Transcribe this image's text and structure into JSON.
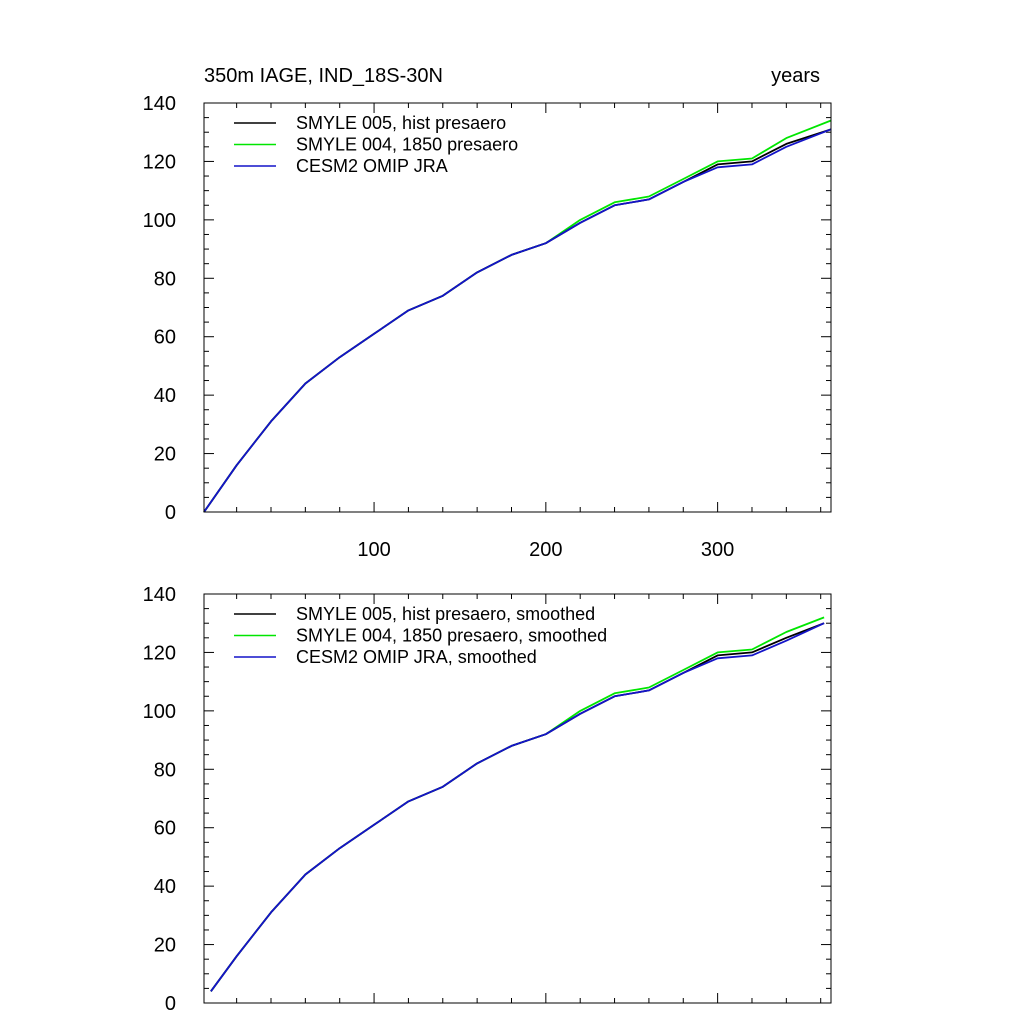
{
  "chart_data": [
    {
      "type": "line",
      "title_left": "350m IAGE, IND_18S-30N",
      "title_right": "years",
      "xlabel": "",
      "ylabel": "",
      "xlim": [
        1,
        366
      ],
      "ylim": [
        0,
        140
      ],
      "x_ticks": [
        100,
        200,
        300
      ],
      "x_tick_labels": [
        "100",
        "200",
        "300"
      ],
      "y_ticks": [
        0,
        20,
        40,
        60,
        80,
        100,
        120,
        140
      ],
      "y_tick_labels": [
        "0",
        "20",
        "40",
        "60",
        "80",
        "100",
        "120",
        "140"
      ],
      "legend_position": "top-left",
      "x": [
        1,
        20,
        40,
        60,
        80,
        100,
        120,
        140,
        160,
        180,
        200,
        220,
        240,
        260,
        280,
        300,
        320,
        340,
        366
      ],
      "series": [
        {
          "name": "SMYLE 005, hist presaero",
          "color": "#000000",
          "values": [
            0,
            16,
            31,
            44,
            53,
            61,
            69,
            74,
            82,
            88,
            92,
            99,
            105,
            107,
            113,
            119,
            120,
            126,
            131
          ]
        },
        {
          "name": "SMYLE 004, 1850 presaero",
          "color": "#00e600",
          "values": [
            0,
            16,
            31,
            44,
            53,
            61,
            69,
            74,
            82,
            88,
            92,
            100,
            106,
            108,
            114,
            120,
            121,
            128,
            134
          ]
        },
        {
          "name": "CESM2 OMIP JRA",
          "color": "#1414c8",
          "values": [
            0,
            16,
            31,
            44,
            53,
            61,
            69,
            74,
            82,
            88,
            92,
            99,
            105,
            107,
            113,
            118,
            119,
            125,
            131
          ]
        }
      ]
    },
    {
      "type": "line",
      "title_left": "",
      "title_right": "",
      "xlabel": "",
      "ylabel": "",
      "xlim": [
        1,
        366
      ],
      "ylim": [
        0,
        140
      ],
      "x_ticks": [
        100,
        200,
        300
      ],
      "x_tick_labels": [],
      "y_ticks": [
        0,
        20,
        40,
        60,
        80,
        100,
        120,
        140
      ],
      "y_tick_labels": [
        "0",
        "20",
        "40",
        "60",
        "80",
        "100",
        "120",
        "140"
      ],
      "legend_position": "top-left",
      "x": [
        5,
        20,
        40,
        60,
        80,
        100,
        120,
        140,
        160,
        180,
        200,
        220,
        240,
        260,
        280,
        300,
        320,
        340,
        362
      ],
      "series": [
        {
          "name": "SMYLE 005, hist presaero, smoothed",
          "color": "#000000",
          "values": [
            4,
            16,
            31,
            44,
            53,
            61,
            69,
            74,
            82,
            88,
            92,
            99,
            105,
            107,
            113,
            119,
            120,
            125,
            130
          ]
        },
        {
          "name": "SMYLE 004, 1850 presaero, smoothed",
          "color": "#00e600",
          "values": [
            4,
            16,
            31,
            44,
            53,
            61,
            69,
            74,
            82,
            88,
            92,
            100,
            106,
            108,
            114,
            120,
            121,
            127,
            132
          ]
        },
        {
          "name": "CESM2 OMIP JRA, smoothed",
          "color": "#1414c8",
          "values": [
            4,
            16,
            31,
            44,
            53,
            61,
            69,
            74,
            82,
            88,
            92,
            99,
            105,
            107,
            113,
            118,
            119,
            124,
            130
          ]
        }
      ]
    }
  ]
}
